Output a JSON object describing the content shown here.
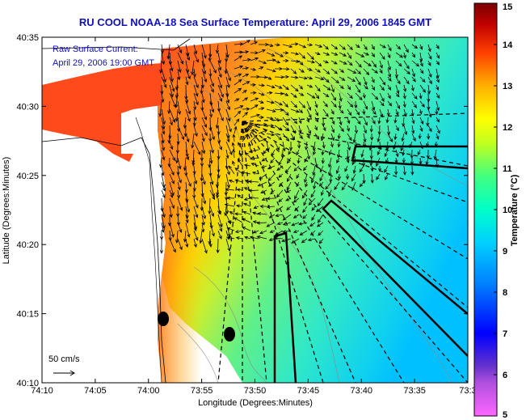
{
  "title": "RU COOL  NOAA-18  Sea Surface Temperature:  April 29, 2006 1845 GMT",
  "legend": {
    "line1": "Raw Surface Current:",
    "line2": "April 29, 2006 19:00 GMT",
    "scale_label": "50 cm/s"
  },
  "x_axis": {
    "label": "Longitude (Degrees:Minutes)",
    "ticks": [
      "74:10",
      "74:05",
      "74:00",
      "73:55",
      "73:50",
      "73:45",
      "73:40",
      "73:35",
      "73:3"
    ]
  },
  "y_axis": {
    "label": "Latitude (Degrees:Minutes)",
    "ticks": [
      "40:35",
      "40:30",
      "40:25",
      "40:20",
      "40:15",
      "40:10"
    ]
  },
  "colorbar": {
    "label": "Temperature (°C)",
    "ticks": [
      "15",
      "14",
      "13",
      "12",
      "11",
      "10",
      "9",
      "8",
      "7",
      "6",
      "5"
    ],
    "range": [
      5,
      15
    ],
    "colormap": [
      "#ff66ff",
      "#6633cc",
      "#0000ff",
      "#0080ff",
      "#00d0ff",
      "#00ffcc",
      "#40ff80",
      "#c0ff20",
      "#ffff00",
      "#ffc000",
      "#ff7000",
      "#ff2000",
      "#c00000",
      "#800000"
    ]
  },
  "colors": {
    "title": "#1010b8",
    "ocean_shore": "#ff5020",
    "land": "#ffffff",
    "arrows": "#000000",
    "contours": "#888888"
  }
}
